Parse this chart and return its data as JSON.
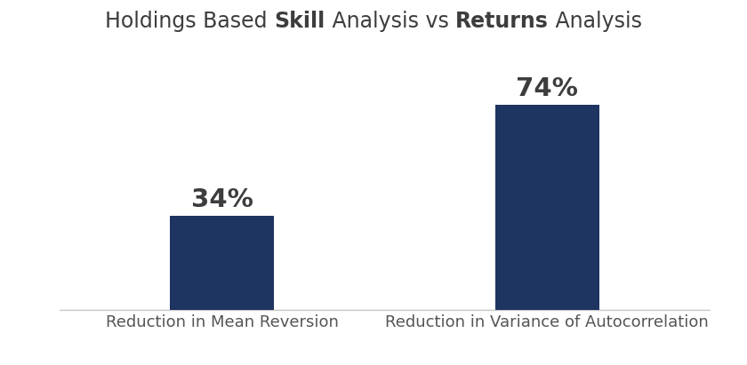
{
  "categories": [
    "Reduction in Mean Reversion",
    "Reduction in Variance of Autocorrelation"
  ],
  "values": [
    34,
    74
  ],
  "labels": [
    "34%",
    "74%"
  ],
  "bar_color": "#1e3461",
  "background_color": "#ffffff",
  "title_parts": [
    {
      "text": "Holdings Based ",
      "bold": false
    },
    {
      "text": "Skill",
      "bold": true
    },
    {
      "text": " Analysis vs ",
      "bold": false
    },
    {
      "text": "Returns",
      "bold": true
    },
    {
      "text": " Analysis",
      "bold": false
    }
  ],
  "title_fontsize": 17,
  "label_fontsize": 21,
  "xlabel_fontsize": 13,
  "bar_width": 0.32,
  "xlim": [
    -0.5,
    1.5
  ],
  "ylim": [
    0,
    88
  ],
  "label_color": "#3d3d3d",
  "xlabel_color": "#555555",
  "x_positions": [
    0,
    1
  ]
}
